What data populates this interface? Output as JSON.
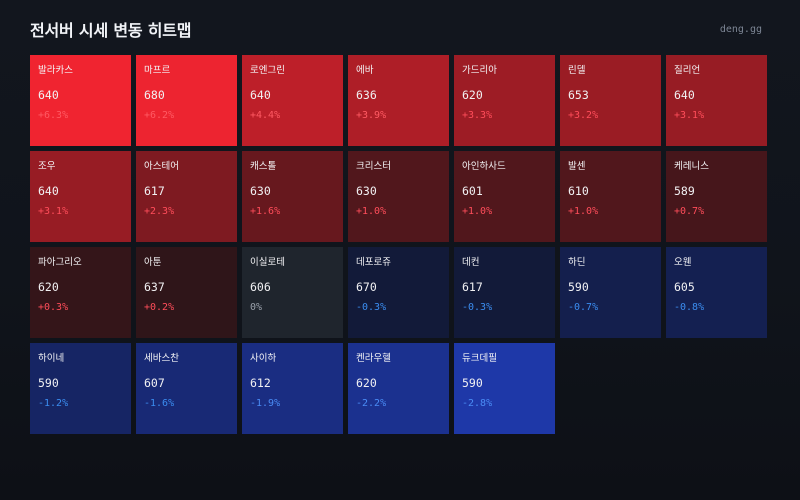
{
  "header": {
    "title": "전서버 시세 변동 히트맵",
    "brand": "deng.gg"
  },
  "colors": {
    "up_text": "#ff4d5a",
    "down_text": "#3b8df0",
    "flat_text": "#9aa1ab"
  },
  "tiles": [
    {
      "name": "발라카스",
      "price": "640",
      "change": "+6.3%",
      "pct": 6.3
    },
    {
      "name": "마프르",
      "price": "680",
      "change": "+6.2%",
      "pct": 6.2
    },
    {
      "name": "로엔그린",
      "price": "640",
      "change": "+4.4%",
      "pct": 4.4
    },
    {
      "name": "에바",
      "price": "636",
      "change": "+3.9%",
      "pct": 3.9
    },
    {
      "name": "가드리아",
      "price": "620",
      "change": "+3.3%",
      "pct": 3.3
    },
    {
      "name": "린델",
      "price": "653",
      "change": "+3.2%",
      "pct": 3.2
    },
    {
      "name": "질리언",
      "price": "640",
      "change": "+3.1%",
      "pct": 3.1
    },
    {
      "name": "조우",
      "price": "640",
      "change": "+3.1%",
      "pct": 3.1
    },
    {
      "name": "아스테어",
      "price": "617",
      "change": "+2.3%",
      "pct": 2.3
    },
    {
      "name": "캐스톨",
      "price": "630",
      "change": "+1.6%",
      "pct": 1.6
    },
    {
      "name": "크리스터",
      "price": "630",
      "change": "+1.0%",
      "pct": 1.0
    },
    {
      "name": "아인하사드",
      "price": "601",
      "change": "+1.0%",
      "pct": 1.0
    },
    {
      "name": "발센",
      "price": "610",
      "change": "+1.0%",
      "pct": 1.0
    },
    {
      "name": "케레니스",
      "price": "589",
      "change": "+0.7%",
      "pct": 0.7
    },
    {
      "name": "파아그리오",
      "price": "620",
      "change": "+0.3%",
      "pct": 0.3
    },
    {
      "name": "아툰",
      "price": "637",
      "change": "+0.2%",
      "pct": 0.2
    },
    {
      "name": "이실로테",
      "price": "606",
      "change": "0%",
      "pct": 0
    },
    {
      "name": "데포로쥬",
      "price": "670",
      "change": "-0.3%",
      "pct": -0.3
    },
    {
      "name": "데컨",
      "price": "617",
      "change": "-0.3%",
      "pct": -0.3
    },
    {
      "name": "하딘",
      "price": "590",
      "change": "-0.7%",
      "pct": -0.7
    },
    {
      "name": "오웬",
      "price": "605",
      "change": "-0.8%",
      "pct": -0.8
    },
    {
      "name": "하이네",
      "price": "590",
      "change": "-1.2%",
      "pct": -1.2
    },
    {
      "name": "세바스찬",
      "price": "607",
      "change": "-1.6%",
      "pct": -1.6
    },
    {
      "name": "사이하",
      "price": "612",
      "change": "-1.9%",
      "pct": -1.9
    },
    {
      "name": "켄라우헬",
      "price": "620",
      "change": "-2.2%",
      "pct": -2.2
    },
    {
      "name": "듀크데필",
      "price": "590",
      "change": "-2.8%",
      "pct": -2.8
    }
  ]
}
